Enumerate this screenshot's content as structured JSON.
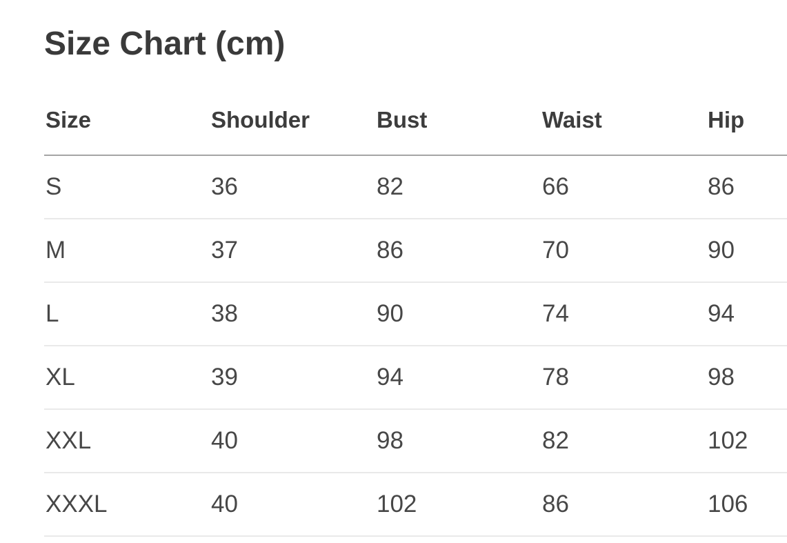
{
  "page": {
    "title": "Size Chart (cm)"
  },
  "table": {
    "columns": [
      "Size",
      "Shoulder",
      "Bust",
      "Waist",
      "Hip"
    ],
    "rows": [
      [
        "S",
        "36",
        "82",
        "66",
        "86"
      ],
      [
        "M",
        "37",
        "86",
        "70",
        "90"
      ],
      [
        "L",
        "38",
        "90",
        "74",
        "94"
      ],
      [
        "XL",
        "39",
        "94",
        "78",
        "98"
      ],
      [
        "XXL",
        "40",
        "98",
        "82",
        "102"
      ],
      [
        "XXXL",
        "40",
        "102",
        "86",
        "106"
      ]
    ]
  },
  "colors": {
    "background": "#ffffff",
    "title_text": "#3a3a3a",
    "header_text": "#3d3d3d",
    "cell_text": "#474747",
    "header_rule": "#a5a5a5",
    "row_rule": "#e9e9e9"
  }
}
